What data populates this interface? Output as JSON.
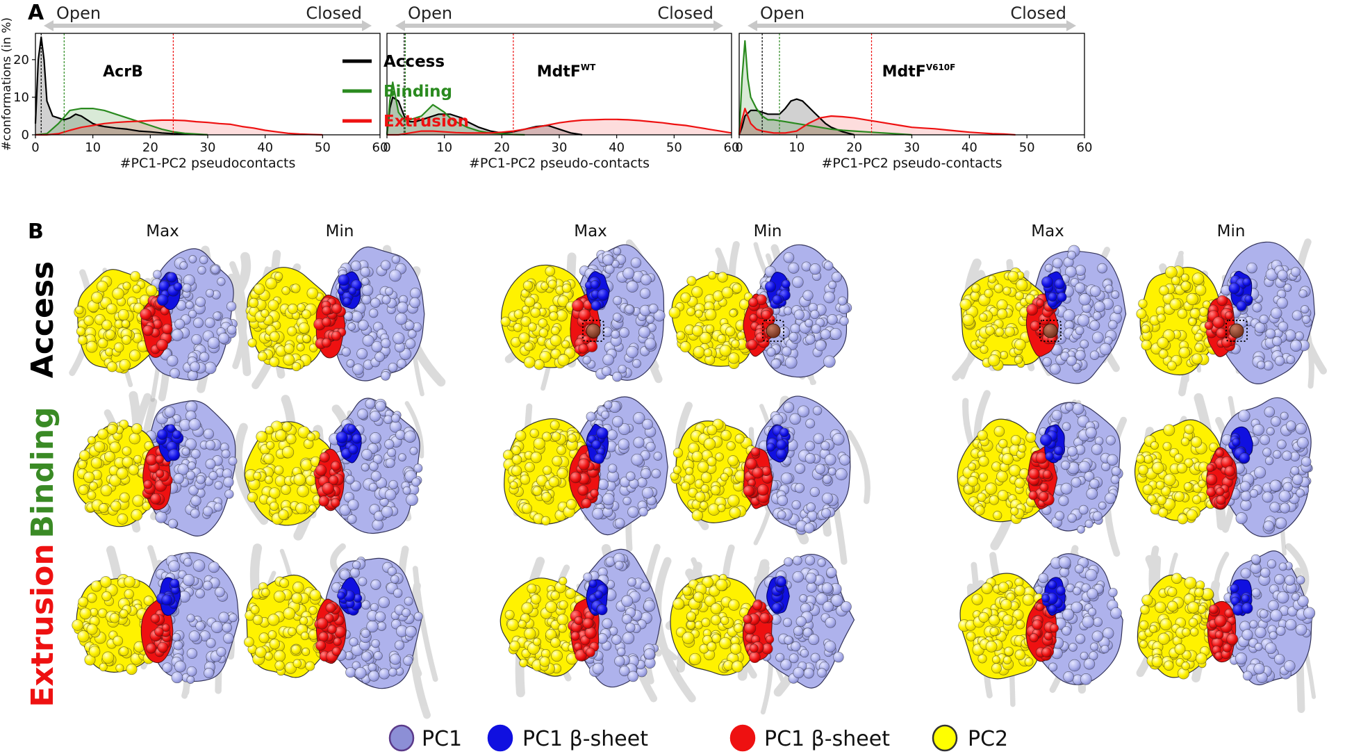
{
  "panel_labels": {
    "a": "A",
    "b": "B"
  },
  "arrow_labels": {
    "open": "Open",
    "closed": "Closed"
  },
  "ylabel": "#conformations (in %)",
  "legend": [
    {
      "name": "Access",
      "color": "#000000"
    },
    {
      "name": "Binding",
      "color": "#2a8a1f"
    },
    {
      "name": "Extrusion",
      "color": "#ee1111"
    }
  ],
  "chart_data": [
    {
      "type": "area",
      "title": "AcrB",
      "title_sup": "",
      "xlabel": "#PC1-PC2 pseudocontacts",
      "xlim": [
        0,
        60
      ],
      "ylim": [
        0,
        27
      ],
      "xticks": [
        "0",
        "10",
        "20",
        "30",
        "40",
        "50",
        "60"
      ],
      "yticks": [
        "0",
        "10",
        "20"
      ],
      "vlines": [
        {
          "series": "Access",
          "x": 1
        },
        {
          "series": "Binding",
          "x": 5
        },
        {
          "series": "Extrusion",
          "x": 24
        }
      ],
      "series": [
        {
          "name": "Access",
          "x": [
            0,
            0.5,
            1,
            1.5,
            2,
            3,
            4,
            5,
            6,
            7,
            8,
            9,
            10,
            11,
            12,
            13,
            14,
            16,
            18,
            20,
            22,
            24,
            26,
            28,
            30
          ],
          "y": [
            3,
            20,
            26,
            20,
            9,
            5,
            4.5,
            4,
            4.5,
            5.5,
            5,
            4,
            3,
            2.5,
            2.2,
            2,
            1.8,
            1.5,
            1,
            0.8,
            0.5,
            0.3,
            0.2,
            0.1,
            0
          ]
        },
        {
          "name": "Binding",
          "x": [
            0,
            2,
            4,
            6,
            8,
            10,
            12,
            14,
            16,
            18,
            20,
            22,
            24,
            26,
            28,
            30
          ],
          "y": [
            0,
            0.3,
            3,
            6.5,
            7,
            7,
            6.5,
            5.5,
            4.5,
            3.5,
            2.5,
            1.5,
            0.8,
            0.4,
            0.2,
            0
          ]
        },
        {
          "name": "Extrusion",
          "x": [
            0,
            2,
            4,
            6,
            8,
            10,
            12,
            14,
            16,
            18,
            20,
            22,
            24,
            26,
            28,
            30,
            32,
            34,
            36,
            38,
            40,
            42,
            44,
            46,
            48,
            50
          ],
          "y": [
            0,
            0,
            0.3,
            1.2,
            2,
            2.5,
            3,
            3.3,
            3.5,
            3.6,
            3.8,
            3.9,
            3.9,
            3.8,
            3.5,
            3.3,
            3.0,
            2.8,
            2.2,
            1.8,
            1.2,
            0.8,
            0.4,
            0.2,
            0.1,
            0
          ]
        }
      ]
    },
    {
      "type": "area",
      "title": "MdtF",
      "title_sup": "WT",
      "xlabel": "#PC1-PC2 pseudo-contacts",
      "xlim": [
        0,
        60
      ],
      "ylim": [
        0,
        27
      ],
      "xticks": [
        "0",
        "10",
        "20",
        "30",
        "40",
        "50",
        "60"
      ],
      "yticks": [],
      "vlines": [
        {
          "series": "Access",
          "x": 3
        },
        {
          "series": "Binding",
          "x": 3.2
        },
        {
          "series": "Extrusion",
          "x": 22
        }
      ],
      "series": [
        {
          "name": "Access",
          "x": [
            0,
            0.5,
            1,
            2,
            3,
            4,
            5,
            6,
            7,
            8,
            9,
            10,
            11,
            12,
            13,
            14,
            16,
            18,
            20,
            22,
            24,
            26,
            28,
            30,
            32,
            34
          ],
          "y": [
            0,
            7,
            10,
            9,
            5,
            3.5,
            3.5,
            4,
            4.5,
            5,
            5.5,
            5.5,
            5.5,
            5,
            4.5,
            3.5,
            2,
            1,
            0.5,
            0.8,
            1.5,
            2.2,
            2.5,
            1.5,
            0.5,
            0
          ]
        },
        {
          "name": "Binding",
          "x": [
            0,
            0.5,
            1,
            1.5,
            2,
            3,
            4,
            5,
            6,
            7,
            8,
            9,
            10,
            11,
            12,
            14,
            16,
            18,
            20,
            22,
            24
          ],
          "y": [
            0,
            9,
            14,
            10,
            6,
            4,
            4,
            4.5,
            5,
            6.5,
            8,
            7,
            6,
            4.5,
            3.5,
            2,
            1,
            0.5,
            0.3,
            0.1,
            0
          ]
        },
        {
          "name": "Extrusion",
          "x": [
            0,
            2,
            4,
            6,
            8,
            10,
            12,
            14,
            16,
            18,
            20,
            22,
            24,
            26,
            28,
            30,
            32,
            34,
            36,
            38,
            40,
            42,
            44,
            46,
            48,
            50,
            52,
            54,
            56,
            58,
            60
          ],
          "y": [
            0,
            0,
            0.5,
            1,
            1,
            0.8,
            0.6,
            0.5,
            0.5,
            0.5,
            0.7,
            1,
            1.5,
            2.0,
            2.6,
            3.2,
            3.6,
            3.9,
            4.0,
            4.1,
            4.1,
            4.0,
            3.8,
            3.5,
            3.2,
            2.8,
            2.5,
            2.0,
            1.5,
            1.0,
            0.5
          ]
        }
      ]
    },
    {
      "type": "area",
      "title": "MdtF",
      "title_sup": "V610F",
      "xlabel": "#PC1-PC2 pseudo-contacts",
      "xlim": [
        0,
        60
      ],
      "ylim": [
        0,
        27
      ],
      "xticks": [
        "0",
        "10",
        "20",
        "30",
        "40",
        "50",
        "60"
      ],
      "yticks": [],
      "vlines": [
        {
          "series": "Access",
          "x": 4
        },
        {
          "series": "Binding",
          "x": 7
        },
        {
          "series": "Extrusion",
          "x": 23
        }
      ],
      "series": [
        {
          "name": "Access",
          "x": [
            0,
            0.5,
            1,
            2,
            3,
            4,
            5,
            6,
            7,
            8,
            9,
            10,
            11,
            12,
            13,
            14,
            15,
            16,
            18,
            20
          ],
          "y": [
            0,
            2,
            5,
            6.5,
            6.5,
            6,
            5.5,
            5.5,
            5.5,
            7,
            9,
            9.5,
            9,
            7.5,
            6,
            4.5,
            3,
            2,
            0.8,
            0
          ]
        },
        {
          "name": "Binding",
          "x": [
            0,
            0.5,
            1,
            1.5,
            2,
            3,
            4,
            5,
            6,
            8,
            10,
            12,
            14,
            16,
            18,
            20,
            22,
            24,
            26,
            28,
            30
          ],
          "y": [
            0,
            15,
            25,
            15,
            10,
            7,
            5,
            4,
            4,
            3.5,
            3,
            2.5,
            2,
            1.5,
            1.2,
            1,
            0.8,
            0.6,
            0.4,
            0.2,
            0
          ]
        },
        {
          "name": "Extrusion",
          "x": [
            0,
            0.5,
            1,
            1.5,
            2,
            3,
            4,
            6,
            8,
            10,
            12,
            14,
            16,
            18,
            20,
            22,
            24,
            26,
            28,
            30,
            32,
            34,
            36,
            38,
            40,
            42,
            44,
            46,
            48
          ],
          "y": [
            0,
            4,
            7,
            5,
            3,
            1.5,
            1,
            0.5,
            0.5,
            1,
            3,
            4.5,
            5,
            4.8,
            4.5,
            4,
            3.5,
            3,
            2.5,
            2,
            1.8,
            1.6,
            1.3,
            1.0,
            0.7,
            0.5,
            0.3,
            0.2,
            0
          ]
        }
      ]
    }
  ],
  "section_b": {
    "col_headers": [
      "Max",
      "Min",
      "Max",
      "Min",
      "Max",
      "Min"
    ],
    "row_headers": [
      {
        "label": "Access",
        "color": "#000000"
      },
      {
        "label": "Binding",
        "color": "#3a8a25"
      },
      {
        "label": "Extrusion",
        "color": "#ee1111"
      }
    ]
  },
  "bottom_legend": [
    {
      "label": "PC1",
      "color": "#8c8fd6",
      "border": "#5b3a8a"
    },
    {
      "label": "PC1 β-sheet",
      "color": "#1010e0",
      "border": "#1010e0"
    },
    {
      "label": "PC1 β-sheet",
      "color": "#ee1111",
      "border": "#ee1111"
    },
    {
      "label": "PC2",
      "color": "#ffff00",
      "border": "#333333"
    }
  ]
}
